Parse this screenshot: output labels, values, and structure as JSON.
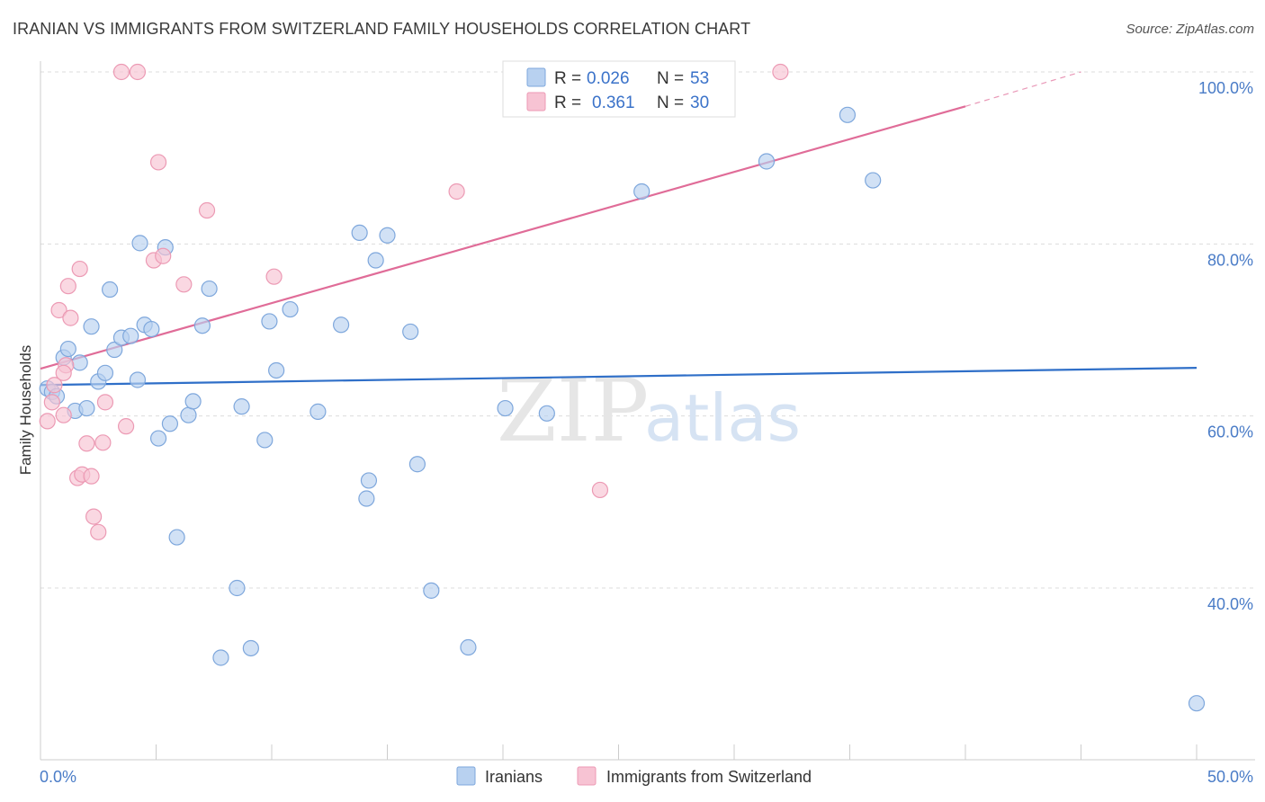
{
  "title": "IRANIAN VS IMMIGRANTS FROM SWITZERLAND FAMILY HOUSEHOLDS CORRELATION CHART",
  "source": "Source: ZipAtlas.com",
  "watermark": {
    "zip": "ZIP",
    "atlas": "atlas"
  },
  "colors": {
    "blue_fill": "#b8d1f0",
    "blue_stroke": "#7ea7dc",
    "blue_line": "#2f6fc8",
    "pink_fill": "#f7c3d3",
    "pink_stroke": "#ec9ab4",
    "pink_line": "#e06c98",
    "grid": "#dcdcdc",
    "axis_text": "#4a7cc7"
  },
  "legend": {
    "rows": [
      {
        "r_label": "R =",
        "r_value": "0.026",
        "n_label": "N =",
        "n_value": "53"
      },
      {
        "r_label": "R =",
        "r_value": "0.361",
        "n_label": "N =",
        "n_value": "30"
      }
    ]
  },
  "bottom_legend": [
    "Iranians",
    "Immigrants from Switzerland"
  ],
  "chart_data": {
    "type": "scatter",
    "title": "IRANIAN VS IMMIGRANTS FROM SWITZERLAND FAMILY HOUSEHOLDS CORRELATION CHART",
    "ylabel": "Family Households",
    "xlabel": "",
    "xlim": [
      0,
      50
    ],
    "ylim": [
      22,
      102
    ],
    "x_tick_labels": [
      "0.0%",
      "50.0%"
    ],
    "y_ticks": [
      40,
      60,
      80,
      100
    ],
    "y_tick_labels": [
      "40.0%",
      "60.0%",
      "80.0%",
      "100.0%"
    ],
    "series": [
      {
        "name": "Iranians",
        "trend": {
          "x0": 0,
          "y0": 63.6,
          "x1": 50,
          "y1": 65.6
        },
        "points": [
          [
            0.3,
            63.2
          ],
          [
            0.5,
            62.8
          ],
          [
            0.7,
            62.3
          ],
          [
            1.0,
            66.8
          ],
          [
            1.2,
            67.8
          ],
          [
            1.5,
            60.6
          ],
          [
            1.7,
            66.2
          ],
          [
            2.0,
            60.9
          ],
          [
            2.2,
            70.4
          ],
          [
            2.5,
            64.0
          ],
          [
            2.8,
            65.0
          ],
          [
            3.0,
            74.7
          ],
          [
            3.2,
            67.7
          ],
          [
            3.5,
            69.1
          ],
          [
            3.9,
            69.3
          ],
          [
            4.2,
            64.2
          ],
          [
            4.3,
            80.1
          ],
          [
            4.5,
            70.6
          ],
          [
            4.8,
            70.1
          ],
          [
            5.1,
            57.4
          ],
          [
            5.4,
            79.6
          ],
          [
            5.6,
            59.1
          ],
          [
            5.9,
            45.9
          ],
          [
            6.4,
            60.1
          ],
          [
            6.6,
            61.7
          ],
          [
            7.0,
            70.5
          ],
          [
            7.3,
            74.8
          ],
          [
            7.8,
            31.9
          ],
          [
            8.5,
            40.0
          ],
          [
            8.7,
            61.1
          ],
          [
            9.1,
            33.0
          ],
          [
            9.7,
            57.2
          ],
          [
            9.9,
            71.0
          ],
          [
            10.2,
            65.3
          ],
          [
            10.8,
            72.4
          ],
          [
            12.0,
            60.5
          ],
          [
            13.0,
            70.6
          ],
          [
            13.8,
            81.3
          ],
          [
            14.1,
            50.4
          ],
          [
            14.2,
            52.5
          ],
          [
            14.5,
            78.1
          ],
          [
            15.0,
            81.0
          ],
          [
            16.0,
            69.8
          ],
          [
            16.3,
            54.4
          ],
          [
            16.9,
            39.7
          ],
          [
            18.5,
            33.1
          ],
          [
            20.1,
            60.9
          ],
          [
            21.9,
            60.3
          ],
          [
            26.0,
            86.1
          ],
          [
            31.4,
            89.6
          ],
          [
            34.9,
            95.0
          ],
          [
            36.0,
            87.4
          ],
          [
            50.0,
            26.6
          ]
        ]
      },
      {
        "name": "Immigrants from Switzerland",
        "trend": {
          "x0": 0,
          "y0": 65.5,
          "x1": 40,
          "y1": 96.0,
          "dashed_to_x": 45,
          "dashed_to_y": 100
        },
        "points": [
          [
            0.3,
            59.4
          ],
          [
            0.5,
            61.6
          ],
          [
            0.6,
            63.6
          ],
          [
            0.8,
            72.3
          ],
          [
            1.0,
            60.1
          ],
          [
            1.1,
            65.9
          ],
          [
            1.2,
            75.1
          ],
          [
            1.3,
            71.4
          ],
          [
            1.6,
            52.8
          ],
          [
            1.7,
            77.1
          ],
          [
            1.8,
            53.2
          ],
          [
            2.0,
            56.8
          ],
          [
            2.2,
            53.0
          ],
          [
            2.3,
            48.3
          ],
          [
            2.5,
            46.5
          ],
          [
            2.7,
            56.9
          ],
          [
            2.8,
            61.6
          ],
          [
            3.7,
            58.8
          ],
          [
            3.5,
            100.0
          ],
          [
            4.2,
            100.0
          ],
          [
            5.1,
            89.5
          ],
          [
            4.9,
            78.1
          ],
          [
            5.3,
            78.6
          ],
          [
            6.2,
            75.3
          ],
          [
            7.2,
            83.9
          ],
          [
            10.1,
            76.2
          ],
          [
            18.0,
            86.1
          ],
          [
            24.2,
            51.4
          ],
          [
            32.0,
            100.0
          ],
          [
            1.0,
            65.0
          ]
        ]
      }
    ]
  }
}
